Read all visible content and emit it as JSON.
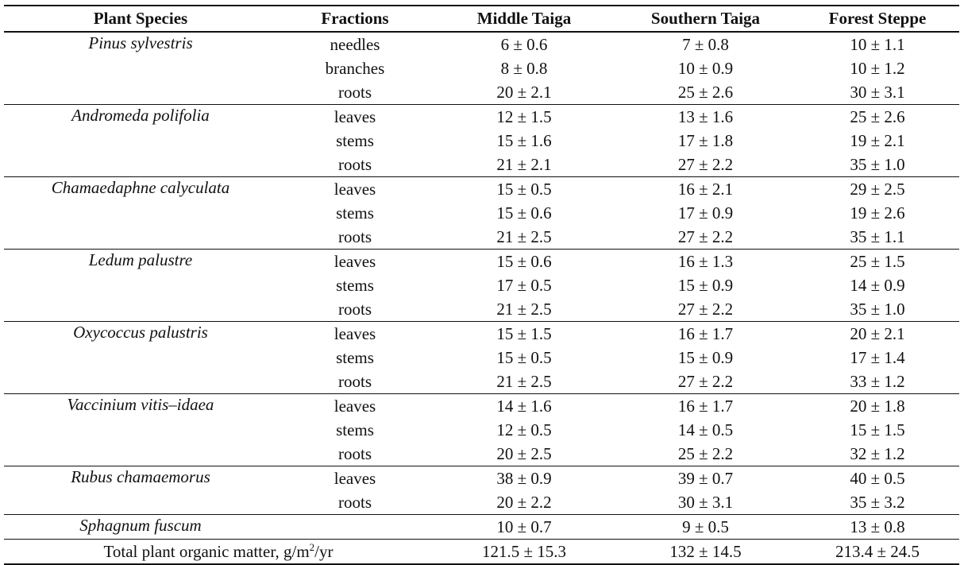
{
  "table": {
    "headers": [
      "Plant Species",
      "Fractions",
      "Middle Taiga",
      "Southern Taiga",
      "Forest Steppe"
    ],
    "groups": [
      {
        "species": "Pinus sylvestris",
        "rows": [
          {
            "fraction": "needles",
            "middle": "6 ± 0.6",
            "southern": "7 ± 0.8",
            "steppe": "10 ± 1.1"
          },
          {
            "fraction": "branches",
            "middle": "8 ± 0.8",
            "southern": "10 ± 0.9",
            "steppe": "10 ± 1.2"
          },
          {
            "fraction": "roots",
            "middle": "20 ± 2.1",
            "southern": "25 ± 2.6",
            "steppe": "30 ± 3.1"
          }
        ]
      },
      {
        "species": "Andromeda polifolia",
        "rows": [
          {
            "fraction": "leaves",
            "middle": "12 ± 1.5",
            "southern": "13 ± 1.6",
            "steppe": "25 ± 2.6"
          },
          {
            "fraction": "stems",
            "middle": "15 ± 1.6",
            "southern": "17 ± 1.8",
            "steppe": "19 ± 2.1"
          },
          {
            "fraction": "roots",
            "middle": "21 ± 2.1",
            "southern": "27 ± 2.2",
            "steppe": "35 ± 1.0"
          }
        ]
      },
      {
        "species": "Chamaedaphne calyculata",
        "rows": [
          {
            "fraction": "leaves",
            "middle": "15 ± 0.5",
            "southern": "16 ± 2.1",
            "steppe": "29 ± 2.5"
          },
          {
            "fraction": "stems",
            "middle": "15 ± 0.6",
            "southern": "17 ± 0.9",
            "steppe": "19 ± 2.6"
          },
          {
            "fraction": "roots",
            "middle": "21 ± 2.5",
            "southern": "27 ± 2.2",
            "steppe": "35 ± 1.1"
          }
        ]
      },
      {
        "species": "Ledum palustre",
        "rows": [
          {
            "fraction": "leaves",
            "middle": "15 ± 0.6",
            "southern": "16 ± 1.3",
            "steppe": "25 ± 1.5"
          },
          {
            "fraction": "stems",
            "middle": "17 ± 0.5",
            "southern": "15 ± 0.9",
            "steppe": "14 ± 0.9"
          },
          {
            "fraction": "roots",
            "middle": "21 ± 2.5",
            "southern": "27 ± 2.2",
            "steppe": "35 ± 1.0"
          }
        ]
      },
      {
        "species": "Oxycoccus palustris",
        "rows": [
          {
            "fraction": "leaves",
            "middle": "15 ± 1.5",
            "southern": "16 ± 1.7",
            "steppe": "20 ± 2.1"
          },
          {
            "fraction": "stems",
            "middle": "15 ± 0.5",
            "southern": "15 ± 0.9",
            "steppe": "17 ± 1.4"
          },
          {
            "fraction": "roots",
            "middle": "21 ± 2.5",
            "southern": "27 ± 2.2",
            "steppe": "33 ± 1.2"
          }
        ]
      },
      {
        "species": "Vaccinium vitis–idaea",
        "rows": [
          {
            "fraction": "leaves",
            "middle": "14 ± 1.6",
            "southern": "16 ± 1.7",
            "steppe": "20 ± 1.8"
          },
          {
            "fraction": "stems",
            "middle": "12 ± 0.5",
            "southern": "14 ± 0.5",
            "steppe": "15 ± 1.5"
          },
          {
            "fraction": "roots",
            "middle": "20 ± 2.5",
            "southern": "25 ± 2.2",
            "steppe": "32 ± 1.2"
          }
        ]
      },
      {
        "species": "Rubus chamaemorus",
        "rows": [
          {
            "fraction": "leaves",
            "middle": "38 ± 0.9",
            "southern": "39 ± 0.7",
            "steppe": "40 ± 0.5"
          },
          {
            "fraction": "roots",
            "middle": "20 ± 2.2",
            "southern": "30 ± 3.1",
            "steppe": "35 ± 3.2"
          }
        ]
      },
      {
        "species": "Sphagnum fuscum",
        "rows": [
          {
            "fraction": "",
            "middle": "10 ± 0.7",
            "southern": "9 ± 0.5",
            "steppe": "13 ± 0.8"
          }
        ]
      }
    ],
    "total": {
      "label_prefix": "Total plant organic matter, g/m",
      "label_sup": "2",
      "label_suffix": "/yr",
      "middle": "121.5 ± 15.3",
      "southern": "132 ± 14.5",
      "steppe": "213.4 ± 24.5"
    }
  }
}
